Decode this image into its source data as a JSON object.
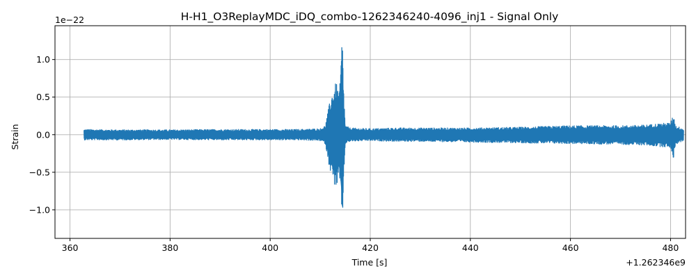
{
  "chart_data": {
    "type": "line",
    "title": "H-H1_O3ReplayMDC_iDQ_combo-1262346240-4096_inj1 - Signal Only",
    "xlabel": "Time [s]",
    "ylabel": "Strain",
    "x_offset_label": "+1.262346e9",
    "y_scale_label": "1e−22",
    "x_ticks": [
      360,
      380,
      400,
      420,
      440,
      460,
      480
    ],
    "x_tick_labels": [
      "360",
      "380",
      "400",
      "420",
      "440",
      "460",
      "480"
    ],
    "y_ticks": [
      -1.0,
      -0.5,
      0.0,
      0.5,
      1.0
    ],
    "y_tick_labels": [
      "−1.0",
      "−0.5",
      "0.0",
      "0.5",
      "1.0"
    ],
    "xlim": [
      357,
      483
    ],
    "ylim": [
      -1.38,
      1.45
    ],
    "grid": true,
    "series": [
      {
        "color": "#1f77b4",
        "x_start": 362.8,
        "x_end": 482.6,
        "envelope": {
          "x": [
            362.8,
            370,
            380,
            390,
            400,
            405,
            410,
            411,
            411.8,
            412.5,
            413.2,
            413.8,
            414.1,
            414.4,
            414.7,
            415.0,
            416,
            420,
            425,
            430,
            440,
            450,
            460,
            470,
            475,
            478,
            480,
            480.6,
            481,
            482.6
          ],
          "upper": [
            0.07,
            0.065,
            0.065,
            0.07,
            0.07,
            0.07,
            0.08,
            0.12,
            0.4,
            0.6,
            0.7,
            0.55,
            0.92,
            1.37,
            0.6,
            0.12,
            0.09,
            0.08,
            0.09,
            0.09,
            0.09,
            0.1,
            0.12,
            0.12,
            0.13,
            0.15,
            0.16,
            0.28,
            0.12,
            0.08
          ],
          "lower": [
            -0.07,
            -0.07,
            -0.065,
            -0.07,
            -0.07,
            -0.07,
            -0.08,
            -0.12,
            -0.42,
            -0.62,
            -0.72,
            -0.55,
            -0.9,
            -1.22,
            -0.62,
            -0.12,
            -0.09,
            -0.08,
            -0.09,
            -0.09,
            -0.1,
            -0.11,
            -0.12,
            -0.13,
            -0.14,
            -0.16,
            -0.17,
            -0.32,
            -0.13,
            -0.08
          ]
        }
      }
    ]
  }
}
